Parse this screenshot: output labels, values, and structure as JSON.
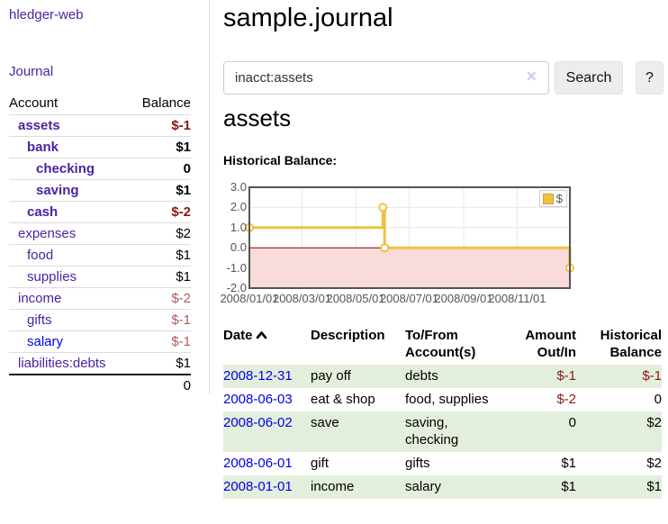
{
  "sidebar": {
    "app_title": "hledger-web",
    "nav": {
      "journal_label": "Journal"
    },
    "accounts_table": {
      "col_account": "Account",
      "col_balance": "Balance",
      "rows": [
        {
          "name": "assets",
          "indent": 1,
          "bold": true,
          "blue": false,
          "balance": "$-1",
          "balance_color": "neg"
        },
        {
          "name": "bank",
          "indent": 2,
          "bold": true,
          "blue": false,
          "balance": "$1",
          "balance_color": ""
        },
        {
          "name": "checking",
          "indent": 3,
          "bold": true,
          "blue": false,
          "balance": "0",
          "balance_color": ""
        },
        {
          "name": "saving",
          "indent": 3,
          "bold": true,
          "blue": false,
          "balance": "$1",
          "balance_color": ""
        },
        {
          "name": "cash",
          "indent": 2,
          "bold": true,
          "blue": false,
          "balance": "$-2",
          "balance_color": "neg"
        },
        {
          "name": "expenses",
          "indent": 1,
          "bold": false,
          "blue": false,
          "balance": "$2",
          "balance_color": ""
        },
        {
          "name": "food",
          "indent": 2,
          "bold": false,
          "blue": false,
          "balance": "$1",
          "balance_color": ""
        },
        {
          "name": "supplies",
          "indent": 2,
          "bold": false,
          "blue": false,
          "balance": "$1",
          "balance_color": ""
        },
        {
          "name": "income",
          "indent": 1,
          "bold": false,
          "blue": false,
          "balance": "$-2",
          "balance_color": "negsoft"
        },
        {
          "name": "gifts",
          "indent": 2,
          "bold": false,
          "blue": false,
          "balance": "$-1",
          "balance_color": "negsoft"
        },
        {
          "name": "salary",
          "indent": 2,
          "bold": false,
          "blue": true,
          "balance": "$-1",
          "balance_color": "negsoft"
        },
        {
          "name": "liabilities:debts",
          "indent": 1,
          "bold": false,
          "blue": false,
          "balance": "$1",
          "balance_color": ""
        }
      ],
      "total": "0"
    }
  },
  "main": {
    "title": "sample.journal",
    "search": {
      "value": "inacct:assets",
      "clear_icon": "✕",
      "button_label": "Search",
      "help_label": "?"
    },
    "account_heading": "assets",
    "chart_heading": "Historical Balance:"
  },
  "chart_data": {
    "type": "line",
    "title": "Historical Balance",
    "step": true,
    "series": [
      {
        "name": "$",
        "points": [
          {
            "date": "2008-01-01",
            "value": 1
          },
          {
            "date": "2008-06-01",
            "value": 2
          },
          {
            "date": "2008-06-03",
            "value": 0
          },
          {
            "date": "2008-12-31",
            "value": -1
          }
        ]
      }
    ],
    "x_ticks": [
      "2008/01/01",
      "2008/03/01",
      "2008/05/01",
      "2008/07/01",
      "2008/09/01",
      "2008/11/01"
    ],
    "y_ticks": [
      "3.0",
      "2.0",
      "1.0",
      "0.0",
      "-1.0",
      "-2.0"
    ],
    "ylim": [
      -2,
      3
    ],
    "x_range": [
      "2008-01-01",
      "2008-12-31"
    ],
    "legend": "$",
    "legend_position": "top-right",
    "grid": true,
    "colors": {
      "line": "#edc240",
      "marker_fill": "#ffffff",
      "negative_region": "#fbdada",
      "zero_line": "#8b0000",
      "grid": "#e8e8e8",
      "border": "#545454"
    }
  },
  "register": {
    "headers": {
      "date": "Date",
      "description": "Description",
      "accounts": "To/From Account(s)",
      "amount": "Amount Out/In",
      "balance": "Historical Balance"
    },
    "sort": "ascending",
    "rows": [
      {
        "date": "2008-12-31",
        "description": "pay off",
        "accounts": "debts",
        "amount": "$-1",
        "amount_neg": true,
        "balance": "$-1",
        "balance_neg": true
      },
      {
        "date": "2008-06-03",
        "description": "eat & shop",
        "accounts": "food, supplies",
        "amount": "$-2",
        "amount_neg": true,
        "balance": "0",
        "balance_neg": false
      },
      {
        "date": "2008-06-02",
        "description": "save",
        "accounts": "saving, checking",
        "amount": "0",
        "amount_neg": false,
        "balance": "$2",
        "balance_neg": false
      },
      {
        "date": "2008-06-01",
        "description": "gift",
        "accounts": "gifts",
        "amount": "$1",
        "amount_neg": false,
        "balance": "$2",
        "balance_neg": false
      },
      {
        "date": "2008-01-01",
        "description": "income",
        "accounts": "salary",
        "amount": "$1",
        "amount_neg": false,
        "balance": "$1",
        "balance_neg": false
      }
    ]
  }
}
